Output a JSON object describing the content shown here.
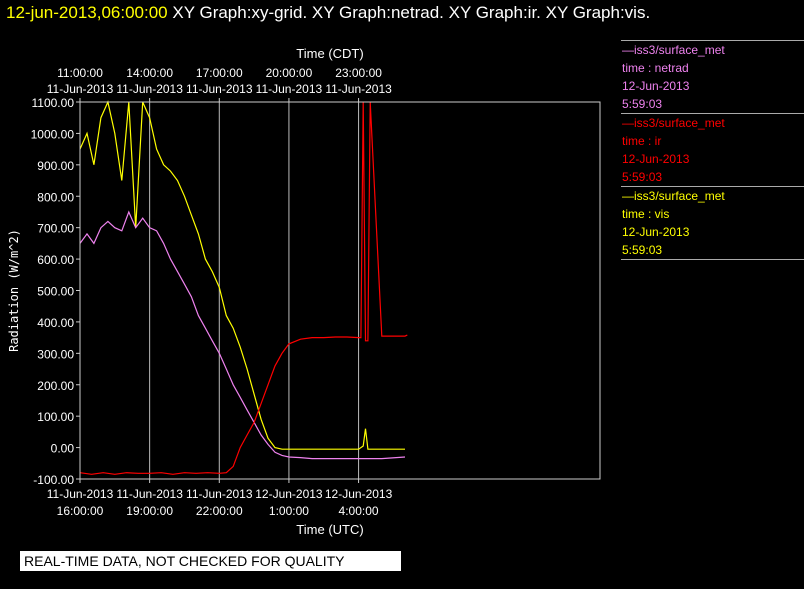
{
  "header": {
    "timestamp": "12-jun-2013,06:00:00",
    "titles": "XY Graph:xy-grid.  XY Graph:netrad.  XY Graph:ir.  XY Graph:vis."
  },
  "legend": [
    {
      "line1": "—iss3/surface_met",
      "line2": "time : netrad",
      "line3": "12-Jun-2013",
      "line4": "5:59:03",
      "color": "#ee82ee"
    },
    {
      "line1": "—iss3/surface_met",
      "line2": "time : ir",
      "line3": "12-Jun-2013",
      "line4": "5:59:03",
      "color": "#ff0000"
    },
    {
      "line1": "—iss3/surface_met",
      "line2": "time : vis",
      "line3": "12-Jun-2013",
      "line4": "5:59:03",
      "color": "#ffff00"
    }
  ],
  "notice": "REAL-TIME DATA, NOT CHECKED FOR QUALITY",
  "chart_data": {
    "type": "line",
    "ylabel": "Radiation (W/m^2)",
    "ylim": [
      -100,
      1100
    ],
    "yticks": [
      "1100.00",
      "1000.00",
      "900.00",
      "800.00",
      "700.00",
      "600.00",
      "500.00",
      "400.00",
      "300.00",
      "200.00",
      "100.00",
      "0.00",
      "-100.00"
    ],
    "ytick_values": [
      1100,
      1000,
      900,
      800,
      700,
      600,
      500,
      400,
      300,
      200,
      100,
      0,
      -100
    ],
    "xlim_utc_hours": [
      16,
      38.4
    ],
    "top_axis": {
      "label": "Time (CDT)",
      "ticks": [
        {
          "hour_utc": 16.0,
          "time": "11:00:00",
          "date": "11-Jun-2013"
        },
        {
          "hour_utc": 19.0,
          "time": "14:00:00",
          "date": "11-Jun-2013"
        },
        {
          "hour_utc": 22.0,
          "time": "17:00:00",
          "date": "11-Jun-2013"
        },
        {
          "hour_utc": 25.0,
          "time": "20:00:00",
          "date": "11-Jun-2013"
        },
        {
          "hour_utc": 28.0,
          "time": "23:00:00",
          "date": "11-Jun-2013"
        }
      ]
    },
    "bottom_axis": {
      "label": "Time (UTC)",
      "ticks": [
        {
          "hour_utc": 16.0,
          "date": "11-Jun-2013",
          "time": "16:00:00"
        },
        {
          "hour_utc": 19.0,
          "date": "11-Jun-2013",
          "time": "19:00:00"
        },
        {
          "hour_utc": 22.0,
          "date": "11-Jun-2013",
          "time": "22:00:00"
        },
        {
          "hour_utc": 25.0,
          "date": "12-Jun-2013",
          "time": "1:00:00"
        },
        {
          "hour_utc": 28.0,
          "date": "12-Jun-2013",
          "time": "4:00:00"
        }
      ]
    },
    "grid": "vertical",
    "series": [
      {
        "key": "vis",
        "color": "#ffff00",
        "x": [
          16.0,
          16.3,
          16.6,
          16.9,
          17.2,
          17.5,
          17.8,
          18.1,
          18.4,
          18.7,
          19.0,
          19.3,
          19.6,
          19.9,
          20.2,
          20.5,
          20.8,
          21.1,
          21.4,
          21.7,
          22.0,
          22.3,
          22.6,
          22.9,
          23.2,
          23.5,
          23.8,
          24.1,
          24.4,
          24.7,
          25.0,
          25.5,
          26.0,
          27.0,
          28.0,
          28.2,
          28.3,
          28.4,
          29.0,
          30.0
        ],
        "y": [
          950,
          1000,
          900,
          1050,
          1100,
          1000,
          850,
          1100,
          700,
          1100,
          1050,
          950,
          900,
          880,
          850,
          800,
          740,
          680,
          600,
          560,
          510,
          420,
          380,
          320,
          250,
          170,
          90,
          30,
          0,
          -5,
          -5,
          -5,
          -5,
          -5,
          -5,
          5,
          60,
          -5,
          -5,
          -5
        ]
      },
      {
        "key": "netrad",
        "color": "#ee82ee",
        "x": [
          16.0,
          16.3,
          16.6,
          16.9,
          17.2,
          17.5,
          17.8,
          18.1,
          18.4,
          18.7,
          19.0,
          19.3,
          19.6,
          19.9,
          20.2,
          20.5,
          20.8,
          21.1,
          21.4,
          21.7,
          22.0,
          22.3,
          22.6,
          22.9,
          23.2,
          23.5,
          23.8,
          24.1,
          24.4,
          24.7,
          25.0,
          25.5,
          26.0,
          27.0,
          28.0,
          29.0,
          30.0
        ],
        "y": [
          650,
          680,
          650,
          700,
          720,
          700,
          690,
          750,
          700,
          730,
          700,
          690,
          650,
          600,
          560,
          520,
          480,
          420,
          380,
          340,
          300,
          250,
          200,
          160,
          120,
          80,
          40,
          10,
          -15,
          -25,
          -30,
          -32,
          -35,
          -35,
          -35,
          -35,
          -30
        ]
      },
      {
        "key": "ir",
        "color": "#ff0000",
        "x": [
          16.0,
          16.5,
          17.0,
          17.5,
          18.0,
          18.5,
          19.0,
          19.5,
          20.0,
          20.5,
          21.0,
          21.5,
          22.0,
          22.3,
          22.6,
          22.9,
          23.2,
          23.5,
          23.8,
          24.1,
          24.4,
          24.7,
          25.0,
          25.5,
          26.0,
          26.5,
          27.0,
          27.5,
          28.0,
          28.1,
          28.2,
          28.3,
          28.4,
          28.5,
          29.0,
          29.5,
          30.0,
          30.1
        ],
        "y": [
          -80,
          -85,
          -80,
          -85,
          -80,
          -82,
          -82,
          -80,
          -85,
          -80,
          -82,
          -80,
          -82,
          -80,
          -60,
          0,
          40,
          80,
          140,
          200,
          260,
          300,
          330,
          345,
          350,
          350,
          352,
          352,
          350,
          350,
          1100,
          340,
          340,
          1100,
          355,
          355,
          355,
          358
        ]
      }
    ]
  }
}
